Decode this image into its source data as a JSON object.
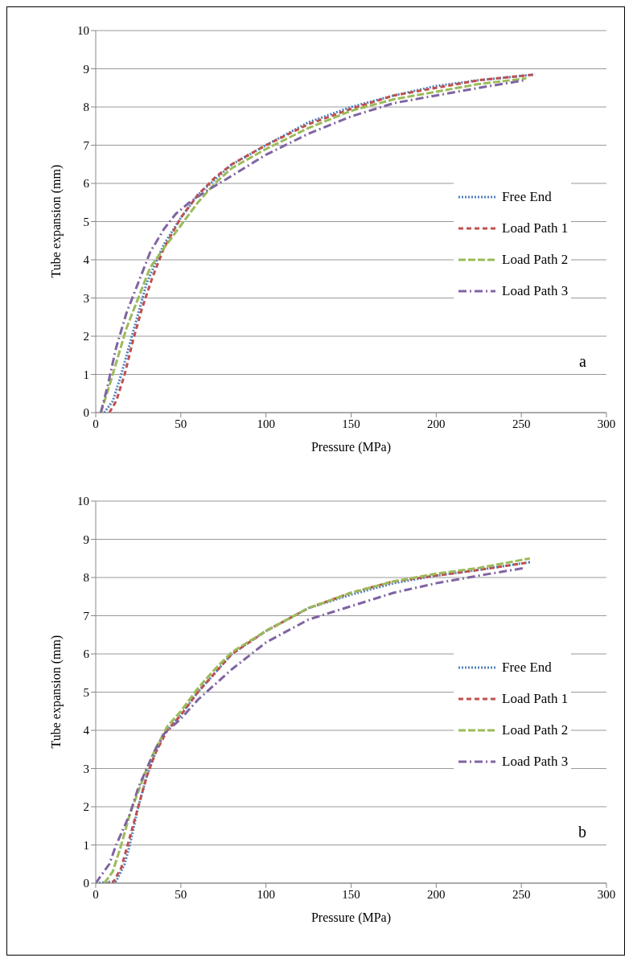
{
  "chart_data": [
    {
      "type": "line",
      "xlabel": "Pressure (MPa)",
      "ylabel": "Tube expansion (mm)",
      "annotations": [
        "a"
      ],
      "xlim": [
        0,
        300
      ],
      "xticks": [
        0,
        50,
        100,
        150,
        200,
        250,
        300
      ],
      "ylim": [
        0,
        10
      ],
      "yticks": [
        0,
        1,
        2,
        3,
        4,
        5,
        6,
        7,
        8,
        9,
        10
      ],
      "grid": "y",
      "legend": "right",
      "marker": "none",
      "series": [
        {
          "name": "Free End",
          "color": "#4f81bd",
          "line_style": "dotted",
          "x": [
            5,
            10,
            15,
            20,
            25,
            30,
            40,
            50,
            60,
            70,
            80,
            100,
            125,
            150,
            175,
            200,
            225,
            258
          ],
          "values": [
            0,
            0.3,
            1,
            1.8,
            2.6,
            3.4,
            4.4,
            5.1,
            5.7,
            6.1,
            6.5,
            7.0,
            7.6,
            8.0,
            8.3,
            8.55,
            8.7,
            8.85
          ]
        },
        {
          "name": "Load Path 1",
          "color": "#c0504d",
          "line_style": "dashed",
          "x": [
            8,
            12,
            17,
            22,
            27,
            33,
            40,
            50,
            60,
            70,
            80,
            100,
            125,
            150,
            175,
            200,
            225,
            258
          ],
          "values": [
            0,
            0.3,
            1,
            1.9,
            2.7,
            3.5,
            4.3,
            5.1,
            5.7,
            6.15,
            6.5,
            7.0,
            7.55,
            7.95,
            8.3,
            8.5,
            8.7,
            8.85
          ]
        },
        {
          "name": "Load Path 2",
          "color": "#9bbb59",
          "line_style": "dashed",
          "x": [
            3,
            8,
            12,
            18,
            25,
            32,
            40,
            50,
            60,
            70,
            80,
            100,
            125,
            150,
            175,
            200,
            225,
            253
          ],
          "values": [
            0,
            0.7,
            1.3,
            2.2,
            3.0,
            3.8,
            4.3,
            4.9,
            5.5,
            6.0,
            6.4,
            6.9,
            7.45,
            7.9,
            8.2,
            8.4,
            8.6,
            8.75
          ]
        },
        {
          "name": "Load Path 3",
          "color": "#8064a2",
          "line_style": "dashed",
          "x": [
            3,
            7,
            12,
            18,
            25,
            32,
            40,
            47,
            55,
            65,
            80,
            100,
            125,
            150,
            175,
            200,
            225,
            252
          ],
          "values": [
            0,
            0.7,
            1.7,
            2.6,
            3.4,
            4.2,
            4.8,
            5.2,
            5.5,
            5.8,
            6.2,
            6.75,
            7.3,
            7.75,
            8.1,
            8.3,
            8.5,
            8.7
          ]
        }
      ]
    },
    {
      "type": "line",
      "xlabel": "Pressure (MPa)",
      "ylabel": "Tube expansion (mm)",
      "annotations": [
        "b"
      ],
      "xlim": [
        0,
        300
      ],
      "xticks": [
        0,
        50,
        100,
        150,
        200,
        250,
        300
      ],
      "ylim": [
        0,
        10
      ],
      "yticks": [
        0,
        1,
        2,
        3,
        4,
        5,
        6,
        7,
        8,
        9,
        10
      ],
      "grid": "y",
      "legend": "right",
      "marker": "none",
      "series": [
        {
          "name": "Free End",
          "color": "#4f81bd",
          "line_style": "dotted",
          "x": [
            0,
            12,
            17,
            20,
            25,
            30,
            35,
            40,
            50,
            60,
            70,
            80,
            100,
            125,
            150,
            175,
            200,
            225,
            255
          ],
          "values": [
            0,
            0.05,
            0.5,
            1,
            2,
            2.8,
            3.4,
            3.9,
            4.4,
            5.0,
            5.5,
            6.0,
            6.6,
            7.2,
            7.55,
            7.85,
            8.05,
            8.2,
            8.4
          ]
        },
        {
          "name": "Load Path 1",
          "color": "#c0504d",
          "line_style": "dashed",
          "x": [
            5,
            10,
            15,
            20,
            25,
            30,
            35,
            42,
            50,
            60,
            70,
            80,
            100,
            125,
            150,
            175,
            200,
            225,
            255
          ],
          "values": [
            0,
            0,
            0.4,
            1.2,
            2.0,
            2.8,
            3.4,
            4.0,
            4.4,
            5.0,
            5.5,
            6.0,
            6.6,
            7.2,
            7.6,
            7.9,
            8.05,
            8.2,
            8.4
          ]
        },
        {
          "name": "Load Path 2",
          "color": "#9bbb59",
          "line_style": "dashed",
          "x": [
            5,
            10,
            15,
            20,
            25,
            30,
            35,
            42,
            50,
            60,
            70,
            80,
            100,
            125,
            150,
            175,
            200,
            225,
            255
          ],
          "values": [
            0,
            0.3,
            1,
            1.8,
            2.4,
            3.0,
            3.5,
            4.1,
            4.5,
            5.1,
            5.6,
            6.05,
            6.6,
            7.2,
            7.6,
            7.9,
            8.1,
            8.25,
            8.5
          ]
        },
        {
          "name": "Load Path 3",
          "color": "#8064a2",
          "line_style": "dashed",
          "x": [
            0,
            8,
            12,
            20,
            25,
            30,
            35,
            40,
            50,
            60,
            70,
            80,
            100,
            125,
            150,
            175,
            200,
            225,
            252
          ],
          "values": [
            0,
            0.5,
            1,
            1.8,
            2.5,
            3.0,
            3.5,
            3.9,
            4.3,
            4.8,
            5.2,
            5.6,
            6.3,
            6.9,
            7.25,
            7.6,
            7.85,
            8.05,
            8.25
          ]
        }
      ]
    }
  ]
}
